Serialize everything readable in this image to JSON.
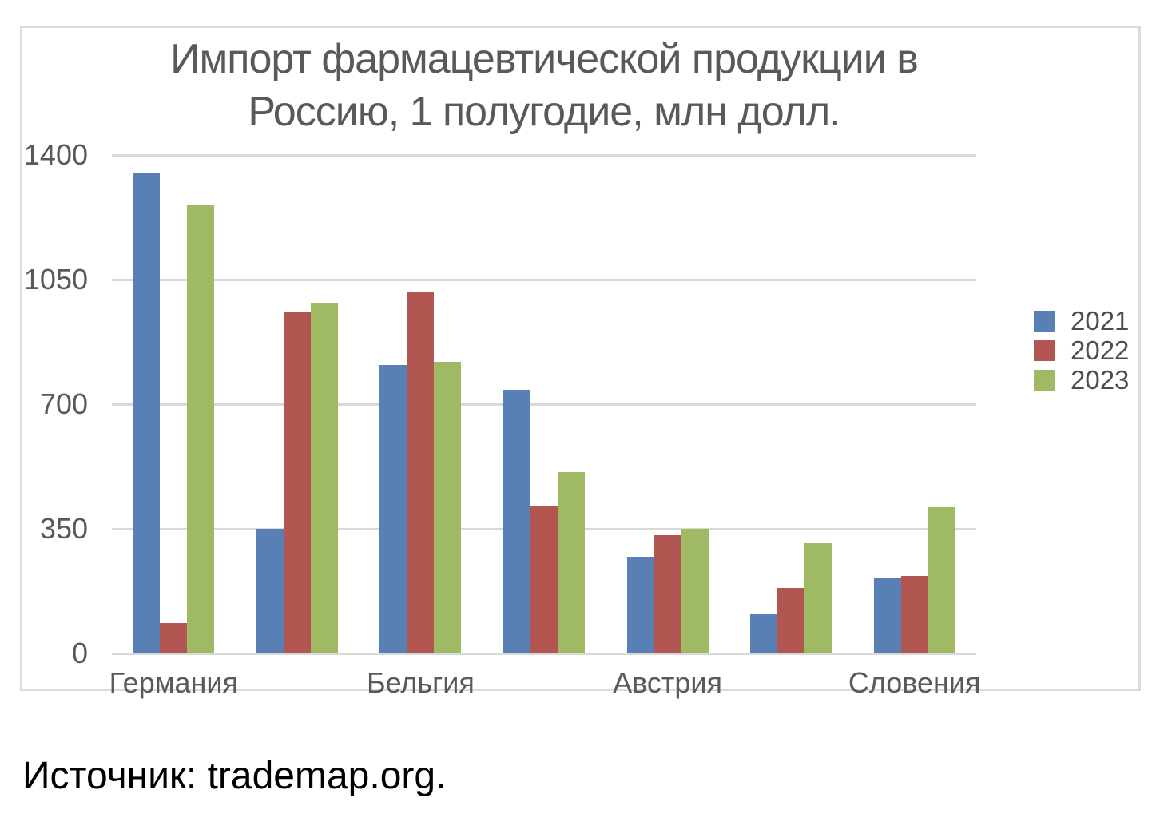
{
  "title": {
    "line1": "Импорт фармацевтической продукции в",
    "line2": "Россию, 1 полугодие, млн долл."
  },
  "source": "Источник: trademap.org.",
  "chart_data": {
    "type": "bar",
    "title": "Импорт фармацевтической продукции в Россию, 1 полугодие, млн долл.",
    "categories": [
      "Германия",
      "",
      "Бельгия",
      "",
      "Австрия",
      "",
      "Словения"
    ],
    "series": [
      {
        "name": "2021",
        "values": [
          1350,
          350,
          810,
          740,
          272,
          113,
          213
        ]
      },
      {
        "name": "2022",
        "values": [
          85,
          960,
          1015,
          415,
          333,
          185,
          218
        ]
      },
      {
        "name": "2023",
        "values": [
          1260,
          985,
          820,
          510,
          349,
          310,
          410
        ]
      }
    ],
    "colors": [
      "#5880B5",
      "#B15651",
      "#9FBA63"
    ],
    "y_ticks": [
      1400,
      1050,
      700,
      350,
      0
    ],
    "ylim": [
      0,
      1400
    ],
    "xlabel": "",
    "ylabel": "",
    "legend_position": "right",
    "grid": "horizontal",
    "gridline_color": "#D9D9D9"
  }
}
